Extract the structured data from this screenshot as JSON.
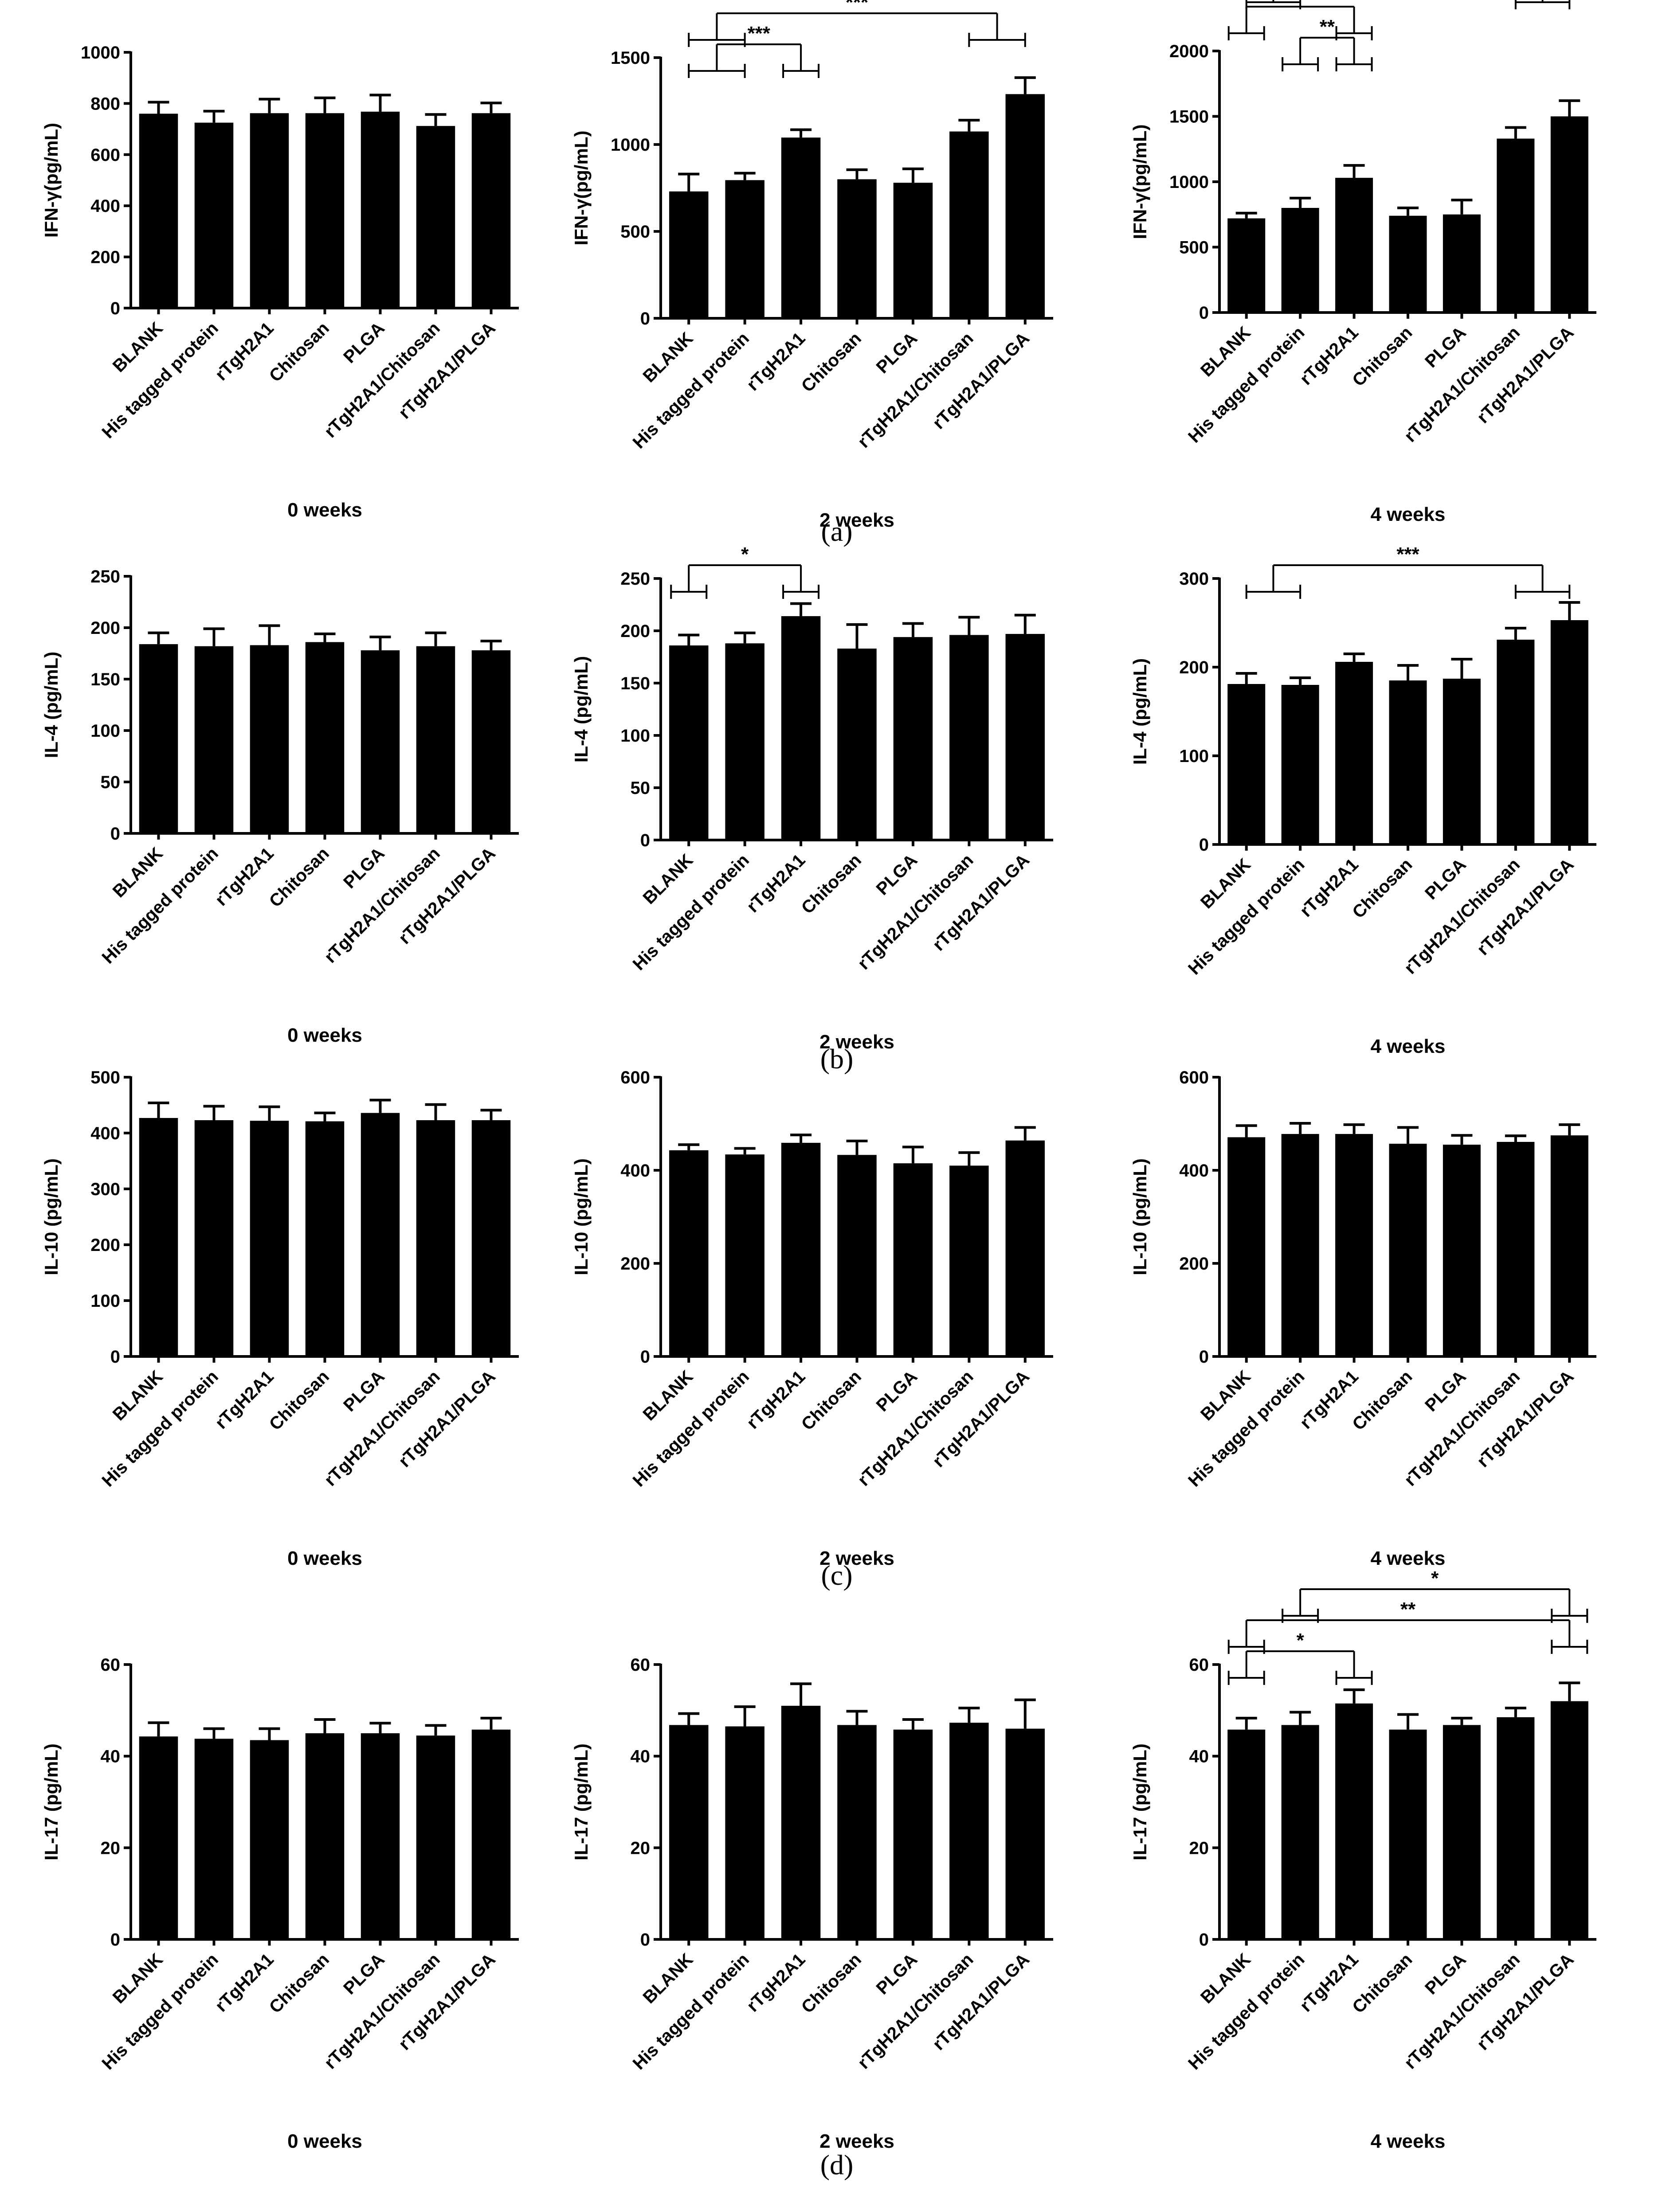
{
  "figure": {
    "panel_labels": [
      "(a)",
      "(b)",
      "(c)",
      "(d)"
    ],
    "colors": {
      "bar": "#000000",
      "axis": "#000000",
      "background": "#ffffff"
    }
  },
  "chart_data": [
    {
      "id": "a1",
      "type": "bar",
      "ylabel": "IFN-γ(pg/mL)",
      "xlabel": "0 weeks",
      "categories": [
        "BLANK",
        "His tagged protein",
        "rTgH2A1",
        "Chitosan",
        "PLGA",
        "rTgH2A1/Chitosan",
        "rTgH2A1/PLGA"
      ],
      "values": [
        760,
        725,
        762,
        762,
        768,
        712,
        762
      ],
      "errors": [
        45,
        45,
        55,
        60,
        65,
        45,
        40
      ],
      "ylim": [
        0,
        1000
      ],
      "yticks": [
        0,
        200,
        400,
        600,
        800,
        1000
      ],
      "significance": []
    },
    {
      "id": "a2",
      "type": "bar",
      "ylabel": "IFN-γ(pg/mL)",
      "xlabel": "2 weeks",
      "categories": [
        "BLANK",
        "His tagged protein",
        "rTgH2A1",
        "Chitosan",
        "PLGA",
        "rTgH2A1/Chitosan",
        "rTgH2A1/PLGA"
      ],
      "values": [
        730,
        795,
        1040,
        800,
        780,
        1075,
        1290
      ],
      "errors": [
        100,
        40,
        45,
        55,
        80,
        65,
        95
      ],
      "ylim": [
        0,
        1500
      ],
      "yticks": [
        0,
        500,
        1000,
        1500
      ],
      "significance": [
        {
          "label": "***",
          "from": [
            0,
            1
          ],
          "to": [
            2,
            2
          ]
        },
        {
          "label": "***",
          "from": [
            0,
            1
          ],
          "to": [
            5,
            6
          ]
        }
      ]
    },
    {
      "id": "a3",
      "type": "bar",
      "ylabel": "IFN-γ(pg/mL)",
      "xlabel": "4 weeks",
      "categories": [
        "BLANK",
        "His tagged protein",
        "rTgH2A1",
        "Chitosan",
        "PLGA",
        "rTgH2A1/Chitosan",
        "rTgH2A1/PLGA"
      ],
      "values": [
        720,
        800,
        1030,
        740,
        750,
        1330,
        1500
      ],
      "errors": [
        40,
        75,
        95,
        60,
        110,
        85,
        120
      ],
      "ylim": [
        0,
        2000
      ],
      "yticks": [
        0,
        500,
        1000,
        1500,
        2000
      ],
      "significance": [
        {
          "label": "**",
          "from": [
            1,
            1
          ],
          "to": [
            2,
            2
          ]
        },
        {
          "label": "***",
          "from": [
            0,
            0
          ],
          "to": [
            2,
            2
          ]
        },
        {
          "label": "***",
          "from": [
            0,
            1
          ],
          "to": [
            5,
            6
          ]
        }
      ]
    },
    {
      "id": "b1",
      "type": "bar",
      "ylabel": "IL-4 (pg/mL)",
      "xlabel": "0 weeks",
      "categories": [
        "BLANK",
        "His tagged protein",
        "rTgH2A1",
        "Chitosan",
        "PLGA",
        "rTgH2A1/Chitosan",
        "rTgH2A1/PLGA"
      ],
      "values": [
        184,
        182,
        183,
        186,
        178,
        182,
        178
      ],
      "errors": [
        11,
        17,
        19,
        8,
        13,
        13,
        9
      ],
      "ylim": [
        0,
        250
      ],
      "yticks": [
        0,
        50,
        100,
        150,
        200,
        250
      ],
      "significance": []
    },
    {
      "id": "b2",
      "type": "bar",
      "ylabel": "IL-4 (pg/mL)",
      "xlabel": "2 weeks",
      "categories": [
        "BLANK",
        "His tagged protein",
        "rTgH2A1",
        "Chitosan",
        "PLGA",
        "rTgH2A1/Chitosan",
        "rTgH2A1/PLGA"
      ],
      "values": [
        186,
        188,
        214,
        183,
        194,
        196,
        197
      ],
      "errors": [
        10,
        10,
        12,
        23,
        13,
        17,
        18
      ],
      "ylim": [
        0,
        250
      ],
      "yticks": [
        0,
        50,
        100,
        150,
        200,
        250
      ],
      "significance": [
        {
          "label": "*",
          "from": [
            0,
            0
          ],
          "to": [
            2,
            2
          ]
        }
      ]
    },
    {
      "id": "b3",
      "type": "bar",
      "ylabel": "IL-4 (pg/mL)",
      "xlabel": "4 weeks",
      "categories": [
        "BLANK",
        "His tagged protein",
        "rTgH2A1",
        "Chitosan",
        "PLGA",
        "rTgH2A1/Chitosan",
        "rTgH2A1/PLGA"
      ],
      "values": [
        181,
        180,
        206,
        185,
        187,
        231,
        253
      ],
      "errors": [
        12,
        8,
        9,
        17,
        22,
        13,
        20
      ],
      "ylim": [
        0,
        300
      ],
      "yticks": [
        0,
        100,
        200,
        300
      ],
      "significance": [
        {
          "label": "***",
          "from": [
            0,
            1
          ],
          "to": [
            5,
            6
          ]
        }
      ]
    },
    {
      "id": "c1",
      "type": "bar",
      "ylabel": "IL-10 (pg/mL)",
      "xlabel": "0 weeks",
      "categories": [
        "BLANK",
        "His tagged protein",
        "rTgH2A1",
        "Chitosan",
        "PLGA",
        "rTgH2A1/Chitosan",
        "rTgH2A1/PLGA"
      ],
      "values": [
        427,
        423,
        422,
        421,
        436,
        423,
        423
      ],
      "errors": [
        27,
        25,
        25,
        15,
        23,
        28,
        18
      ],
      "ylim": [
        0,
        500
      ],
      "yticks": [
        0,
        100,
        200,
        300,
        400,
        500
      ],
      "significance": []
    },
    {
      "id": "c2",
      "type": "bar",
      "ylabel": "IL-10 (pg/mL)",
      "xlabel": "2 weeks",
      "categories": [
        "BLANK",
        "His tagged protein",
        "rTgH2A1",
        "Chitosan",
        "PLGA",
        "rTgH2A1/Chitosan",
        "rTgH2A1/PLGA"
      ],
      "values": [
        443,
        434,
        459,
        433,
        415,
        410,
        464
      ],
      "errors": [
        12,
        13,
        17,
        30,
        35,
        28,
        28
      ],
      "ylim": [
        0,
        600
      ],
      "yticks": [
        0,
        200,
        400,
        600
      ],
      "significance": []
    },
    {
      "id": "c3",
      "type": "bar",
      "ylabel": "IL-10 (pg/mL)",
      "xlabel": "4 weeks",
      "categories": [
        "BLANK",
        "His tagged protein",
        "rTgH2A1",
        "Chitosan",
        "PLGA",
        "rTgH2A1/Chitosan",
        "rTgH2A1/PLGA"
      ],
      "values": [
        471,
        478,
        478,
        457,
        455,
        461,
        475
      ],
      "errors": [
        25,
        23,
        20,
        35,
        20,
        13,
        23
      ],
      "ylim": [
        0,
        600
      ],
      "yticks": [
        0,
        200,
        400,
        600
      ],
      "significance": []
    },
    {
      "id": "d1",
      "type": "bar",
      "ylabel": "IL-17 (pg/mL)",
      "xlabel": "0 weeks",
      "categories": [
        "BLANK",
        "His tagged protein",
        "rTgH2A1",
        "Chitosan",
        "PLGA",
        "rTgH2A1/Chitosan",
        "rTgH2A1/PLGA"
      ],
      "values": [
        44.3,
        43.8,
        43.5,
        45.0,
        45.0,
        44.5,
        45.8
      ],
      "errors": [
        3.0,
        2.2,
        2.5,
        3.0,
        2.2,
        2.2,
        2.5
      ],
      "ylim": [
        0,
        60
      ],
      "yticks": [
        0,
        20,
        40,
        60
      ],
      "significance": []
    },
    {
      "id": "d2",
      "type": "bar",
      "ylabel": "IL-17 (pg/mL)",
      "xlabel": "2 weeks",
      "categories": [
        "BLANK",
        "His tagged protein",
        "rTgH2A1",
        "Chitosan",
        "PLGA",
        "rTgH2A1/Chitosan",
        "rTgH2A1/PLGA"
      ],
      "values": [
        46.8,
        46.5,
        51.0,
        46.8,
        45.8,
        47.3,
        46.0
      ],
      "errors": [
        2.5,
        4.3,
        4.8,
        3.0,
        2.2,
        3.2,
        6.3
      ],
      "ylim": [
        0,
        60
      ],
      "yticks": [
        0,
        20,
        40,
        60
      ],
      "significance": []
    },
    {
      "id": "d3",
      "type": "bar",
      "ylabel": "IL-17 (pg/mL)",
      "xlabel": "4 weeks",
      "categories": [
        "BLANK",
        "His tagged protein",
        "rTgH2A1",
        "Chitosan",
        "PLGA",
        "rTgH2A1/Chitosan",
        "rTgH2A1/PLGA"
      ],
      "values": [
        45.8,
        46.8,
        51.5,
        45.8,
        46.8,
        48.5,
        52.0
      ],
      "errors": [
        2.5,
        2.8,
        3.0,
        3.3,
        1.5,
        2.0,
        4.0
      ],
      "ylim": [
        0,
        60
      ],
      "yticks": [
        0,
        20,
        40,
        60
      ],
      "significance": [
        {
          "label": "*",
          "from": [
            0,
            0
          ],
          "to": [
            2,
            2
          ]
        },
        {
          "label": "**",
          "from": [
            0,
            0
          ],
          "to": [
            6,
            6
          ]
        },
        {
          "label": "*",
          "from": [
            1,
            1
          ],
          "to": [
            6,
            6
          ]
        }
      ]
    }
  ]
}
